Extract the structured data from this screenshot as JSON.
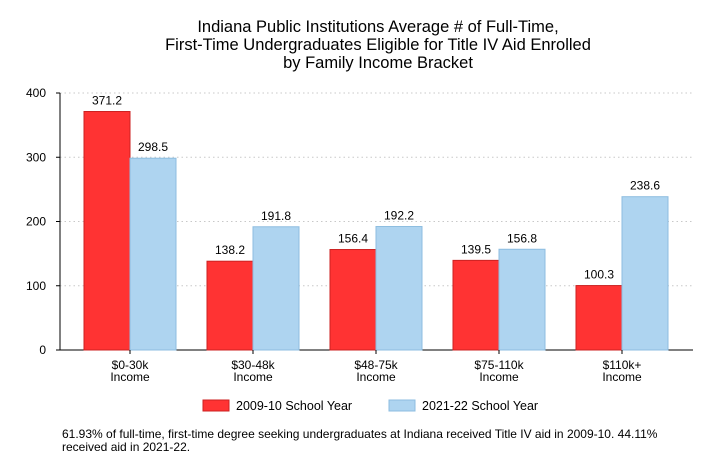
{
  "chart_data": {
    "type": "bar",
    "title_lines": [
      "Indiana Public Institutions Average # of Full-Time,",
      "First-Time Undergraduates Eligible for Title IV Aid Enrolled",
      "by Family Income Bracket"
    ],
    "categories": [
      [
        "$0-30k",
        "Income"
      ],
      [
        "$30-48k",
        "Income"
      ],
      [
        "$48-75k",
        "Income"
      ],
      [
        "$75-110k",
        "Income"
      ],
      [
        "$110k+",
        "Income"
      ]
    ],
    "series": [
      {
        "name": "2009-10 School Year",
        "values": [
          371.2,
          138.2,
          156.4,
          139.5,
          100.3
        ],
        "color": "#ff3333",
        "stroke": "#cc2222"
      },
      {
        "name": "2021-22 School Year",
        "values": [
          298.5,
          191.8,
          192.2,
          156.8,
          238.6
        ],
        "color": "#aed4f0",
        "stroke": "#8dbde0"
      }
    ],
    "value_labels": [
      [
        "371.2",
        "138.2",
        "156.4",
        "139.5",
        "100.3"
      ],
      [
        "298.5",
        "191.8",
        "192.2",
        "156.8",
        "238.6"
      ]
    ],
    "ylim": [
      0,
      400
    ],
    "yticks": [
      "0",
      "100",
      "200",
      "300",
      "400"
    ],
    "grid": true,
    "legend_position": "bottom",
    "xlabel": "",
    "ylabel": ""
  },
  "note": "61.93% of full-time, first-time degree seeking undergraduates at Indiana received Title IV aid in 2009-10. 44.11% received aid in 2021-22."
}
